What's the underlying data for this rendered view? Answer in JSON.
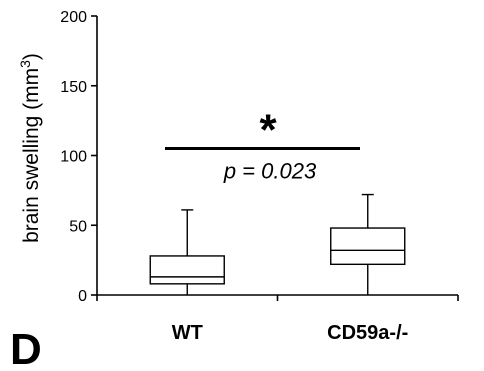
{
  "chart_data": {
    "type": "box",
    "panel_label": "D",
    "title": "",
    "xlabel": "",
    "ylabel": "brain swelling (mm",
    "ylabel_superscript": "3",
    "ylabel_close": ")",
    "ylim": [
      0,
      200
    ],
    "yticks": [
      0,
      50,
      100,
      150,
      200
    ],
    "categories": [
      "WT",
      "CD59a-/-"
    ],
    "boxes": [
      {
        "category": "WT",
        "min": 0,
        "q1": 8,
        "median": 13,
        "q3": 28,
        "max": 61
      },
      {
        "category": "CD59a-/-",
        "min": 0,
        "q1": 22,
        "median": 32,
        "q3": 48,
        "max": 72
      }
    ],
    "significance": {
      "marker": "*",
      "p_text": "p = 0.023",
      "bar_value": 105
    },
    "grid": false,
    "legend": "none"
  }
}
